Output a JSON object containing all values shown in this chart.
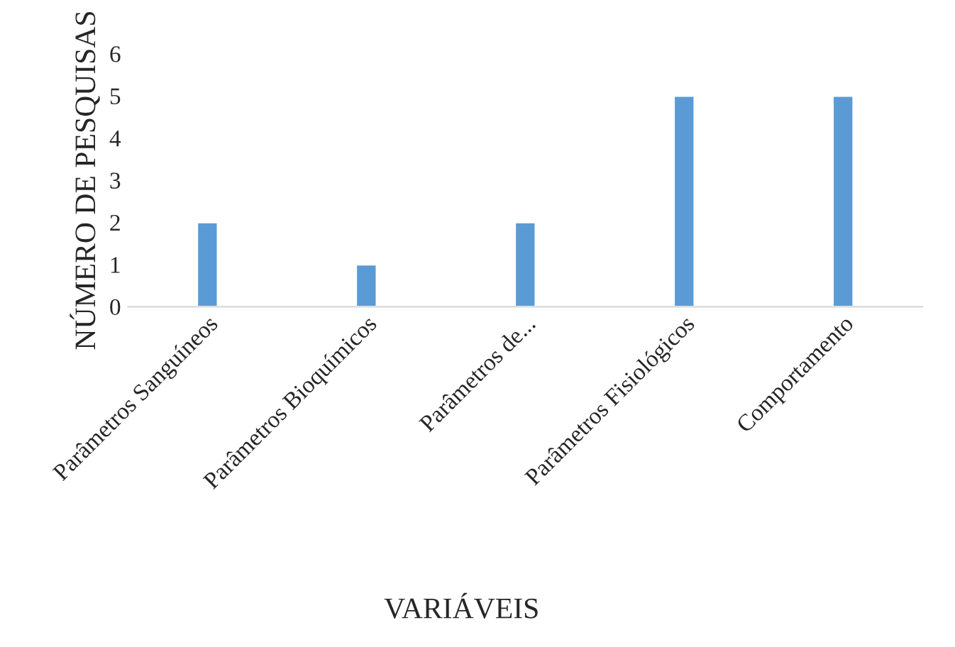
{
  "chart_data": {
    "type": "bar",
    "xlabel": "VARIÁVEIS",
    "ylabel": "NÚMERO DE PESQUISAS",
    "categories": [
      "Parâmetros Sanguíneos",
      "Parâmetros Bioquímicos",
      "Parâmetros de...",
      "Parâmetros Fisiológicos",
      "Comportamento"
    ],
    "values": [
      2,
      1,
      2,
      5,
      5
    ],
    "color": "#5b9bd5",
    "ylim": [
      0,
      6
    ],
    "yticks": [
      0,
      1,
      2,
      3,
      4,
      5,
      6
    ],
    "grid": false,
    "legend": false
  }
}
